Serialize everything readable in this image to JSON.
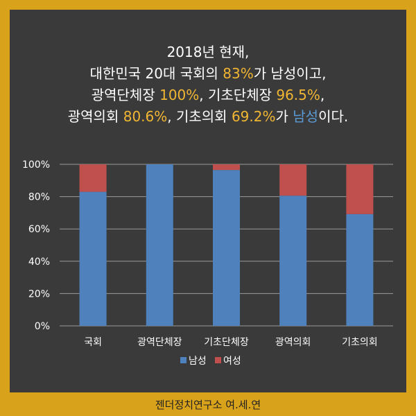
{
  "title": {
    "line1": "2018년 현재,",
    "line2": {
      "a": "대한민국 20대 국회의 ",
      "b": "83%",
      "c": "가 남성이고,"
    },
    "line3": {
      "a": "광역단체장 ",
      "b": "100%",
      "c": ", 기초단체장 ",
      "d": "96.5%",
      "e": ","
    },
    "line4": {
      "a": "광역의회 ",
      "b": "80.6%",
      "c": ", 기초의회 ",
      "d": "69.2%",
      "e": "가 ",
      "f": "남성",
      "g": "이다."
    }
  },
  "footer": "젠더정치연구소 여.세.연",
  "colors": {
    "male": "#4f81bd",
    "female": "#c0504d",
    "highlight": "#f2b632",
    "frame": "#d9a21b"
  },
  "chart_data": {
    "type": "bar",
    "stacked": true,
    "categories": [
      "국회",
      "광역단체장",
      "기초단체장",
      "광역의회",
      "기초의회"
    ],
    "series": [
      {
        "name": "남성",
        "values": [
          83,
          100,
          96.5,
          80.6,
          69.2
        ]
      },
      {
        "name": "여성",
        "values": [
          17,
          0,
          3.5,
          19.4,
          30.8
        ]
      }
    ],
    "ylim": [
      0,
      100
    ],
    "yticks": [
      "0%",
      "20%",
      "40%",
      "60%",
      "80%",
      "100%"
    ],
    "grid": true,
    "legend": "bottom"
  }
}
